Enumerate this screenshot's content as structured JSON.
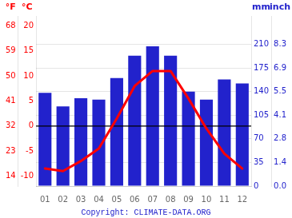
{
  "chart_data": {
    "type": "bar",
    "categories": [
      "01",
      "02",
      "03",
      "04",
      "05",
      "06",
      "07",
      "08",
      "09",
      "10",
      "11",
      "12"
    ],
    "series": [
      {
        "type": "bar",
        "color": "#2222cc",
        "axis": "y2",
        "values": [
          138,
          118,
          130,
          128,
          160,
          193,
          207,
          193,
          140,
          128,
          158,
          152
        ]
      },
      {
        "type": "line",
        "color": "#ff0000",
        "axis": "y",
        "values": [
          -8.5,
          -9.0,
          -7.0,
          -4.5,
          1.5,
          8.0,
          11.0,
          11.0,
          5.5,
          -0.5,
          -5.5,
          -8.5
        ]
      }
    ],
    "ylabel": "°C",
    "ylim": [
      -12,
      22
    ],
    "yticks": [
      -10,
      -5,
      0,
      5,
      10,
      15,
      20
    ],
    "y2label": "mm",
    "y2lim": [
      0,
      252
    ],
    "y2ticks": [
      0,
      35,
      70,
      105,
      140,
      175,
      210
    ],
    "y3label": "°F",
    "y3lim": [
      -12,
      22
    ],
    "y3ticks": [
      {
        "value": -10,
        "label": "14"
      },
      {
        "value": -5,
        "label": "23"
      },
      {
        "value": 0,
        "label": "32"
      },
      {
        "value": 5,
        "label": "41"
      },
      {
        "value": 10,
        "label": "50"
      },
      {
        "value": 15,
        "label": "59"
      },
      {
        "value": 20,
        "label": "68"
      }
    ],
    "y4label": "inch",
    "y4lim": [
      0,
      252
    ],
    "y4ticks": [
      {
        "value": 0,
        "label": "0.0"
      },
      {
        "value": 35,
        "label": "1.4"
      },
      {
        "value": 70,
        "label": "2.8"
      },
      {
        "value": 105,
        "label": "4.1"
      },
      {
        "value": 140,
        "label": "5.5"
      },
      {
        "value": 175,
        "label": "6.9"
      },
      {
        "value": 210,
        "label": "8.3"
      }
    ],
    "hlines": [
      {
        "value": 0,
        "axis": "y"
      }
    ],
    "annotations": [
      "Copyright: CLIMATE-DATA.ORG"
    ],
    "grid": true
  }
}
